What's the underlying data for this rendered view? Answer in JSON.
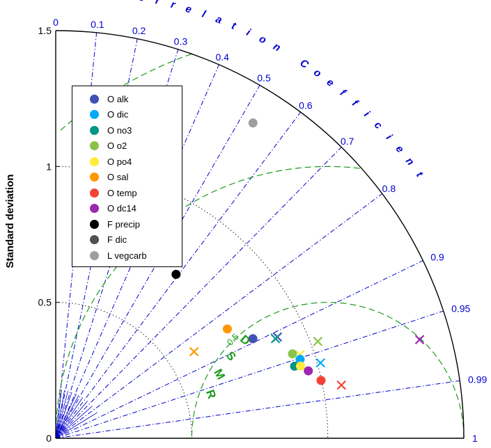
{
  "chart_data": {
    "type": "scatter",
    "subtype": "taylor-diagram",
    "title": "",
    "ylabel": "Standard deviation",
    "correlation_label": "Correlation Coefficient",
    "rmsd_label": "RMSD",
    "std_range": [
      0,
      1.5
    ],
    "std_ticks": [
      "0",
      "0.5",
      "1",
      "1.5"
    ],
    "correlation_ticks": [
      "0",
      "0.1",
      "0.2",
      "0.3",
      "0.4",
      "0.5",
      "0.6",
      "0.7",
      "0.8",
      "0.9",
      "0.95",
      "0.99",
      "1"
    ],
    "rmsd_ticks": [
      "0.5",
      "1",
      "1.5"
    ],
    "reference_std": 1.0,
    "legend_position": "upper-left",
    "series": [
      {
        "name": "O alk",
        "color": "#3f51b5",
        "marker": "circle",
        "std": 0.812,
        "corr": 0.8925
      },
      {
        "name": "O dic",
        "color": "#03a9f4",
        "marker": "circle",
        "std": 0.944,
        "corr": 0.9515
      },
      {
        "name": "O no3",
        "color": "#009688",
        "marker": "circle",
        "std": 0.917,
        "corr": 0.9573
      },
      {
        "name": "O o2",
        "color": "#8bc34a",
        "marker": "circle",
        "std": 0.924,
        "corr": 0.9418
      },
      {
        "name": "O po4",
        "color": "#ffeb3b",
        "marker": "circle",
        "std": 0.938,
        "corr": 0.9591
      },
      {
        "name": "O sal",
        "color": "#ff9800",
        "marker": "circle",
        "std": 0.748,
        "corr": 0.8432
      },
      {
        "name": "O temp",
        "color": "#f44336",
        "marker": "circle",
        "std": 0.998,
        "corr": 0.977
      },
      {
        "name": "O dc14",
        "color": "#9c27b0",
        "marker": "circle",
        "std": 0.961,
        "corr": 0.9661
      },
      {
        "name": "F precip",
        "color": "#000000",
        "marker": "circle",
        "std": 0.748,
        "corr": 0.5914
      },
      {
        "name": "F dic",
        "color": "#505050",
        "marker": "circle",
        "std": 1.001,
        "corr": 0.3811
      },
      {
        "name": "L vegcarb",
        "color": "#9e9e9e",
        "marker": "circle",
        "std": 1.368,
        "corr": 0.53
      }
    ],
    "reference_points": [
      {
        "color": "#3f51b5",
        "marker": "x",
        "std": 0.896,
        "corr": 0.9094
      },
      {
        "color": "#03a9f4",
        "marker": "x",
        "std": 1.012,
        "corr": 0.9617
      },
      {
        "color": "#009688",
        "marker": "x",
        "std": 0.887,
        "corr": 0.9107
      },
      {
        "color": "#8bc34a",
        "marker": "x",
        "std": 1.027,
        "corr": 0.9379
      },
      {
        "color": "#ffeb3b",
        "marker": "x",
        "std": 0.949,
        "corr": 0.946
      },
      {
        "color": "#ff9800",
        "marker": "x",
        "std": 0.6,
        "corr": 0.8474
      },
      {
        "color": "#f44336",
        "marker": "x",
        "std": 1.068,
        "corr": 0.9831
      },
      {
        "color": "#9c27b0",
        "marker": "x",
        "std": 1.386,
        "corr": 0.9651
      }
    ]
  }
}
